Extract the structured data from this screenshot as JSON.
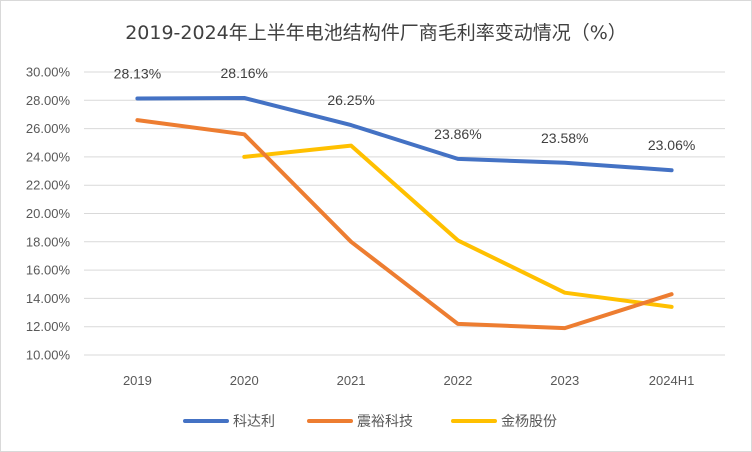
{
  "chart_data": {
    "type": "line",
    "title": "2019-2024年上半年电池结构件厂商毛利率变动情况（%）",
    "categories": [
      "2019",
      "2020",
      "2021",
      "2022",
      "2023",
      "2024H1"
    ],
    "ylim": [
      10,
      30
    ],
    "yticks": [
      "10.00%",
      "12.00%",
      "14.00%",
      "16.00%",
      "18.00%",
      "20.00%",
      "22.00%",
      "24.00%",
      "26.00%",
      "28.00%",
      "30.00%"
    ],
    "grid": true,
    "legend_position": "bottom",
    "series": [
      {
        "name": "科达利",
        "color": "#4472C4",
        "values": [
          28.13,
          28.16,
          26.25,
          23.86,
          23.58,
          23.06
        ],
        "labels": [
          "28.13%",
          "28.16%",
          "26.25%",
          "23.86%",
          "23.58%",
          "23.06%"
        ]
      },
      {
        "name": "震裕科技",
        "color": "#ED7D31",
        "values": [
          26.6,
          25.6,
          18.0,
          12.2,
          11.9,
          14.3
        ]
      },
      {
        "name": "金杨股份",
        "color": "#FFC000",
        "values": [
          null,
          24.0,
          24.8,
          18.1,
          14.4,
          13.4
        ]
      }
    ]
  }
}
